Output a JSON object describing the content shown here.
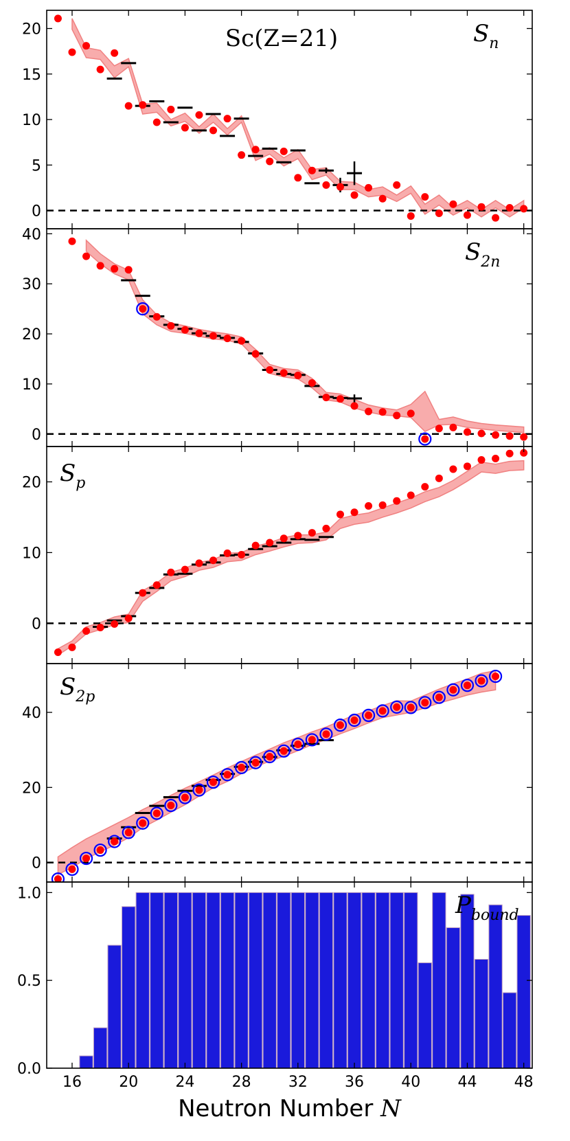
{
  "chart_data": [
    {
      "type": "scatter",
      "id": "sn",
      "title": "Sc(Z=21)",
      "label": "S",
      "label_sub": "n",
      "xlim": [
        14.2,
        48.6
      ],
      "ylim": [
        -2,
        22
      ],
      "yticks": [
        0,
        5,
        10,
        15,
        20
      ],
      "prediction_points": {
        "x": [
          15,
          16,
          17,
          18,
          19,
          20,
          21,
          22,
          23,
          24,
          25,
          26,
          27,
          28,
          29,
          30,
          31,
          32,
          33,
          34,
          35,
          36,
          37,
          38,
          39,
          40,
          41,
          42,
          43,
          44,
          45,
          46,
          47,
          48
        ],
        "y": [
          21.1,
          17.4,
          18.1,
          15.5,
          17.3,
          11.5,
          11.6,
          9.7,
          11.1,
          9.1,
          10.5,
          8.8,
          10.1,
          6.1,
          6.7,
          5.4,
          6.5,
          3.6,
          4.4,
          2.8,
          2.6,
          1.7,
          2.5,
          1.3,
          2.8,
          -0.6,
          1.5,
          -0.3,
          0.7,
          -0.5,
          0.4,
          -0.8,
          0.3,
          0.2
        ]
      },
      "experiment": {
        "x": [
          19,
          20,
          21,
          22,
          23,
          24,
          25,
          26,
          27,
          28,
          29,
          30,
          31,
          32,
          33,
          34,
          35,
          36
        ],
        "y": [
          14.5,
          16.2,
          11.5,
          12.0,
          9.7,
          11.3,
          8.8,
          10.6,
          8.2,
          10.1,
          6.0,
          6.8,
          5.3,
          6.6,
          3.0,
          4.4,
          2.8,
          4.1
        ],
        "err": [
          0,
          0,
          0,
          0,
          0,
          0,
          0,
          0,
          0,
          0,
          0,
          0,
          0,
          0,
          0,
          0.3,
          0.8,
          1.3
        ]
      },
      "band_x": [
        16,
        17,
        18,
        19,
        20,
        21,
        22,
        23,
        24,
        25,
        26,
        27,
        28,
        29,
        30,
        31,
        32,
        33,
        34,
        35,
        36,
        37,
        38,
        39,
        40,
        41,
        42,
        43,
        44,
        45,
        46,
        47,
        48
      ],
      "band_lo": [
        19.9,
        16.8,
        16.6,
        14.6,
        15.8,
        10.6,
        10.8,
        9.3,
        9.8,
        8.5,
        9.7,
        8.3,
        9.7,
        5.5,
        6.2,
        4.9,
        5.7,
        3.4,
        3.9,
        2.3,
        2.3,
        1.5,
        1.7,
        1.0,
        1.9,
        -0.4,
        0.6,
        -0.5,
        0.3,
        -0.7,
        0.3,
        -0.7,
        0.3
      ],
      "band_hi": [
        21.1,
        17.9,
        17.6,
        15.9,
        16.7,
        11.7,
        11.8,
        10.0,
        10.7,
        9.2,
        10.6,
        9.0,
        10.4,
        6.5,
        6.9,
        5.8,
        6.7,
        4.5,
        4.7,
        3.2,
        3.1,
        2.3,
        2.6,
        1.7,
        2.7,
        0.7,
        1.7,
        0.3,
        1.1,
        0.1,
        1.1,
        0.1,
        1.1
      ]
    },
    {
      "type": "scatter",
      "id": "s2n",
      "label": "S",
      "label_sub": "2n",
      "xlim": [
        14.2,
        48.6
      ],
      "ylim": [
        -2.5,
        41
      ],
      "yticks": [
        0,
        10,
        20,
        30,
        40
      ],
      "prediction_points": {
        "x": [
          16,
          17,
          18,
          19,
          20,
          21,
          22,
          23,
          24,
          25,
          26,
          27,
          28,
          29,
          30,
          31,
          32,
          33,
          34,
          35,
          36,
          37,
          38,
          39,
          40,
          41,
          42,
          43,
          44,
          45,
          46,
          47,
          48
        ],
        "y": [
          38.5,
          35.5,
          33.6,
          33.0,
          32.8,
          25.0,
          23.4,
          21.6,
          20.8,
          20.1,
          19.6,
          19.1,
          18.6,
          16.0,
          12.8,
          12.2,
          11.7,
          10.2,
          7.3,
          7.0,
          5.6,
          4.5,
          4.4,
          3.7,
          4.1,
          -1.0,
          1.1,
          1.3,
          0.4,
          0.1,
          -0.2,
          -0.4,
          -0.6
        ]
      },
      "open_markers": [
        {
          "x": 21,
          "y": 25.0
        },
        {
          "x": 41,
          "y": -1.0
        }
      ],
      "experiment": {
        "x": [
          20,
          21,
          22,
          23,
          24,
          25,
          26,
          27,
          28,
          29,
          30,
          31,
          32,
          33,
          34,
          35,
          36
        ],
        "y": [
          30.7,
          27.6,
          23.5,
          21.8,
          21.0,
          20.1,
          19.6,
          19.2,
          18.4,
          16.1,
          12.8,
          12.0,
          11.8,
          9.6,
          7.4,
          7.2,
          7.1
        ],
        "err": [
          0,
          0,
          0,
          0,
          0,
          0,
          0,
          0,
          0,
          0,
          0,
          0,
          0,
          0,
          0,
          0,
          0.8
        ]
      },
      "band_x": [
        17,
        18,
        19,
        20,
        21,
        22,
        23,
        24,
        25,
        26,
        27,
        28,
        29,
        30,
        31,
        32,
        33,
        34,
        35,
        36,
        37,
        38,
        39,
        40,
        41,
        42,
        43,
        44,
        45,
        46,
        47,
        48
      ],
      "band_lo": [
        36.5,
        34.0,
        32.0,
        30.8,
        24.0,
        21.8,
        20.5,
        20.1,
        19.5,
        19.0,
        18.7,
        18.0,
        15.1,
        12.1,
        11.4,
        11.0,
        9.2,
        6.8,
        6.4,
        5.2,
        4.4,
        3.8,
        3.6,
        3.3,
        0.5,
        1.8,
        1.9,
        1.3,
        1.0,
        0.7,
        0.5,
        0.3
      ],
      "band_hi": [
        38.7,
        36.0,
        34.0,
        32.7,
        26.8,
        23.8,
        22.2,
        21.6,
        20.9,
        20.4,
        20.0,
        19.4,
        16.9,
        13.9,
        13.1,
        12.8,
        11.1,
        8.3,
        8.0,
        6.9,
        5.8,
        5.2,
        4.8,
        5.9,
        8.5,
        2.9,
        3.4,
        2.6,
        2.1,
        1.8,
        1.6,
        1.4
      ]
    },
    {
      "type": "scatter",
      "id": "sp",
      "label": "S",
      "label_sub": "p",
      "xlim": [
        14.2,
        48.6
      ],
      "ylim": [
        -5.7,
        25
      ],
      "yticks": [
        0,
        10,
        20
      ],
      "prediction_points": {
        "x": [
          15,
          16,
          17,
          18,
          19,
          20,
          21,
          22,
          23,
          24,
          25,
          26,
          27,
          28,
          29,
          30,
          31,
          32,
          33,
          34,
          35,
          36,
          37,
          38,
          39,
          40,
          41,
          42,
          43,
          44,
          45,
          46,
          47,
          48
        ],
        "y": [
          -4.1,
          -3.4,
          -1.1,
          -0.6,
          -0.1,
          0.7,
          4.3,
          5.4,
          7.2,
          7.6,
          8.5,
          8.9,
          9.9,
          9.7,
          11.0,
          11.4,
          12.0,
          12.4,
          12.8,
          13.4,
          15.4,
          15.7,
          16.6,
          16.7,
          17.3,
          18.1,
          19.3,
          20.5,
          21.8,
          22.2,
          23.1,
          23.3,
          24.0,
          24.1
        ]
      },
      "experiment": {
        "x": [
          18,
          19,
          20,
          21,
          22,
          23,
          24,
          25,
          26,
          27,
          28,
          29,
          30,
          31,
          32,
          33,
          34
        ],
        "y": [
          -0.5,
          0.4,
          1.0,
          4.3,
          5.0,
          6.9,
          7.0,
          8.3,
          8.6,
          9.6,
          9.7,
          10.5,
          10.9,
          11.4,
          11.9,
          11.8,
          12.2
        ],
        "err": [
          0,
          0,
          0,
          0,
          0,
          0,
          0,
          0,
          0,
          0,
          0,
          0,
          0,
          0,
          0,
          0,
          0
        ]
      },
      "band_x": [
        15,
        16,
        17,
        18,
        19,
        20,
        21,
        22,
        23,
        24,
        25,
        26,
        27,
        28,
        29,
        30,
        31,
        32,
        33,
        34,
        35,
        36,
        37,
        38,
        39,
        40,
        41,
        42,
        43,
        44,
        45,
        46,
        47,
        48
      ],
      "band_lo": [
        -4.5,
        -3.2,
        -1.5,
        -0.9,
        -0.2,
        0.1,
        3.1,
        4.5,
        6.0,
        6.6,
        7.5,
        7.9,
        8.7,
        8.9,
        9.7,
        10.2,
        10.8,
        11.3,
        11.4,
        11.8,
        13.4,
        14.0,
        14.3,
        15.0,
        15.6,
        16.3,
        17.2,
        17.9,
        18.9,
        20.1,
        21.4,
        21.2,
        21.6,
        21.7
      ],
      "band_hi": [
        -3.6,
        -2.5,
        -0.5,
        0.1,
        0.9,
        1.3,
        4.6,
        5.7,
        7.2,
        7.8,
        8.6,
        9.0,
        9.9,
        10.0,
        10.9,
        11.4,
        12.1,
        12.5,
        12.5,
        12.9,
        14.8,
        15.3,
        15.6,
        16.3,
        17.0,
        17.7,
        18.6,
        19.2,
        20.2,
        21.5,
        22.8,
        22.5,
        22.9,
        23.0
      ]
    },
    {
      "type": "scatter",
      "id": "s2p",
      "label": "S",
      "label_sub": "2p",
      "xlim": [
        14.2,
        48.6
      ],
      "ylim": [
        -5.2,
        53
      ],
      "yticks": [
        0,
        20,
        40
      ],
      "prediction_points": {
        "x": [
          15,
          16,
          17,
          18,
          19,
          20,
          21,
          22,
          23,
          24,
          25,
          26,
          27,
          28,
          29,
          30,
          31,
          32,
          33,
          34,
          35,
          36,
          37,
          38,
          39,
          40,
          41,
          42,
          43,
          44,
          45,
          46
        ],
        "y": [
          -4.4,
          -1.8,
          1.1,
          3.3,
          5.6,
          8.0,
          10.5,
          13.1,
          15.2,
          17.3,
          19.3,
          21.4,
          23.4,
          25.3,
          26.6,
          28.2,
          29.7,
          31.5,
          32.7,
          34.2,
          36.6,
          37.9,
          39.2,
          40.4,
          41.4,
          41.3,
          42.6,
          44.0,
          46.0,
          47.2,
          48.4,
          49.6
        ]
      },
      "open_markers_all": true,
      "experiment": {
        "x": [
          19,
          20,
          21,
          22,
          23,
          24,
          25,
          26,
          27,
          28,
          29,
          30,
          31,
          32,
          33,
          34
        ],
        "y": [
          6.4,
          9.4,
          13.2,
          15.1,
          17.4,
          19.1,
          20.4,
          22.0,
          23.6,
          25.5,
          26.8,
          28.1,
          29.9,
          31.1,
          31.6,
          32.6
        ],
        "err": [
          0,
          0,
          0,
          0,
          0,
          0,
          0,
          0,
          0,
          0,
          0,
          0,
          0,
          0,
          0,
          0
        ]
      },
      "band_x": [
        15,
        16,
        17,
        18,
        19,
        20,
        21,
        22,
        23,
        24,
        25,
        26,
        27,
        28,
        29,
        30,
        31,
        32,
        33,
        34,
        35,
        36,
        37,
        38,
        39,
        40,
        41,
        42,
        43,
        44,
        45,
        46
      ],
      "band_lo": [
        -3.2,
        -1.3,
        1.0,
        2.9,
        4.6,
        6.6,
        9.3,
        11.3,
        13.4,
        15.4,
        17.7,
        19.9,
        21.6,
        23.7,
        25.5,
        27.0,
        28.3,
        29.8,
        31.4,
        32.8,
        34.3,
        35.7,
        37.2,
        38.6,
        39.3,
        40.0,
        41.2,
        42.5,
        43.5,
        44.6,
        45.4,
        46.0
      ],
      "band_hi": [
        1.5,
        4.0,
        6.3,
        8.2,
        10.1,
        12.0,
        14.1,
        15.9,
        17.9,
        19.8,
        21.5,
        23.3,
        25.2,
        26.9,
        28.6,
        30.2,
        31.9,
        33.3,
        34.8,
        36.1,
        37.7,
        39.3,
        40.4,
        41.8,
        43.1,
        43.0,
        44.6,
        46.2,
        47.6,
        48.9,
        50.4,
        51.1
      ]
    },
    {
      "type": "bar",
      "id": "pbound",
      "label": "P",
      "label_sub": "bound",
      "xlabel": "Neutron Number N",
      "xlabel_text": "Neutron Number",
      "xlabel_var": "N",
      "xlim": [
        14.2,
        48.6
      ],
      "ylim": [
        0,
        1.06
      ],
      "yticks": [
        "0.0",
        "0.5",
        "1.0"
      ],
      "xticks": [
        "16",
        "20",
        "24",
        "28",
        "32",
        "36",
        "40",
        "44",
        "48"
      ],
      "x": [
        15,
        16,
        17,
        18,
        19,
        20,
        21,
        22,
        23,
        24,
        25,
        26,
        27,
        28,
        29,
        30,
        31,
        32,
        33,
        34,
        35,
        36,
        37,
        38,
        39,
        40,
        41,
        42,
        43,
        44,
        45,
        46,
        47,
        48
      ],
      "values": [
        0.0,
        0.0,
        0.07,
        0.23,
        0.7,
        0.92,
        1.0,
        1.0,
        1.0,
        1.0,
        1.0,
        1.0,
        1.0,
        1.0,
        1.0,
        1.0,
        1.0,
        1.0,
        1.0,
        1.0,
        1.0,
        1.0,
        1.0,
        1.0,
        1.0,
        1.0,
        0.6,
        1.0,
        0.8,
        0.99,
        0.62,
        0.93,
        0.43,
        0.87
      ]
    }
  ],
  "colors": {
    "prediction": "#ff0000",
    "band": "#f7a3a3",
    "band_edge": "#f08080",
    "experiment": "#000000",
    "open_marker": "#0000ff",
    "bar": "#1a1adb",
    "bar_edge": "#c0a0c0",
    "zero_line": "#000000"
  }
}
